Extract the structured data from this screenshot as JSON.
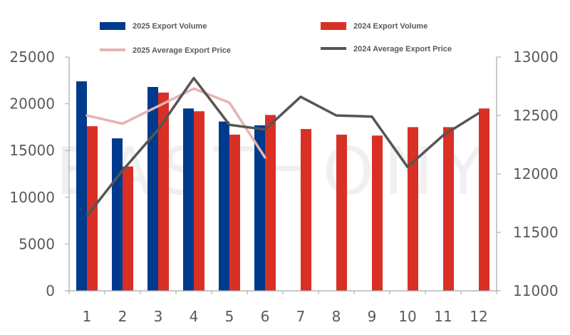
{
  "chart_data": {
    "type": "bar",
    "categories": [
      "1",
      "2",
      "3",
      "4",
      "5",
      "6",
      "7",
      "8",
      "9",
      "10",
      "11",
      "12"
    ],
    "series": [
      {
        "name": "2025 Export Volume",
        "kind": "bar",
        "axis": "left",
        "color": "#003a8c",
        "values": [
          22400,
          16300,
          21800,
          19500,
          18100,
          17700,
          null,
          null,
          null,
          null,
          null,
          null
        ]
      },
      {
        "name": "2024 Export Volume",
        "kind": "bar",
        "axis": "left",
        "color": "#d93025",
        "values": [
          17600,
          13300,
          21200,
          19200,
          16700,
          18800,
          17300,
          16700,
          16600,
          17500,
          17500,
          19500
        ]
      },
      {
        "name": "2025 Average Export Price",
        "kind": "line",
        "axis": "right",
        "color": "#e6b3b3",
        "values": [
          12500,
          12430,
          12580,
          12730,
          12610,
          12140,
          null,
          null,
          null,
          null,
          null,
          null
        ]
      },
      {
        "name": "2024 Average Export Price",
        "kind": "line",
        "axis": "right",
        "color": "#555555",
        "values": [
          11640,
          12030,
          12380,
          12820,
          12420,
          12380,
          12660,
          12500,
          12490,
          12060,
          12330,
          12520
        ]
      }
    ],
    "y_left": {
      "range": [
        0,
        25000
      ],
      "ticks": [
        "0",
        "5000",
        "10000",
        "15000",
        "20000",
        "25000"
      ]
    },
    "y_right": {
      "range": [
        11000,
        13000
      ],
      "ticks": [
        "11000",
        "11500",
        "12000",
        "12500",
        "13000"
      ]
    },
    "legend_position": "top",
    "grid": false
  },
  "legend": {
    "bar_2025": "2025 Export Volume",
    "bar_2024": "2024 Export Volume",
    "line_2025": "2025 Average Export Price",
    "line_2024": "2024 Average Export Price"
  },
  "watermark": "EASTHONY"
}
